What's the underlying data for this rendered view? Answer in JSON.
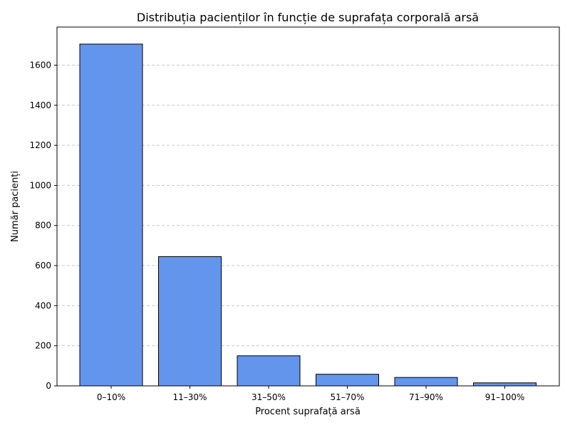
{
  "chart_data": {
    "type": "bar",
    "title": "Distribuția pacienților în funcție de suprafața corporală arsă",
    "xlabel": "Procent suprafață arsă",
    "ylabel": "Număr pacienți",
    "categories": [
      "0–10%",
      "11–30%",
      "31–50%",
      "51–70%",
      "71–90%",
      "91–100%"
    ],
    "values": [
      1705,
      645,
      150,
      58,
      42,
      15
    ],
    "ylim": [
      0,
      1790
    ],
    "yticks": [
      0,
      200,
      400,
      600,
      800,
      1000,
      1200,
      1400,
      1600
    ],
    "grid": "y-dashed",
    "bar_color": "#6495ed",
    "bar_edge_color": "#000000"
  }
}
